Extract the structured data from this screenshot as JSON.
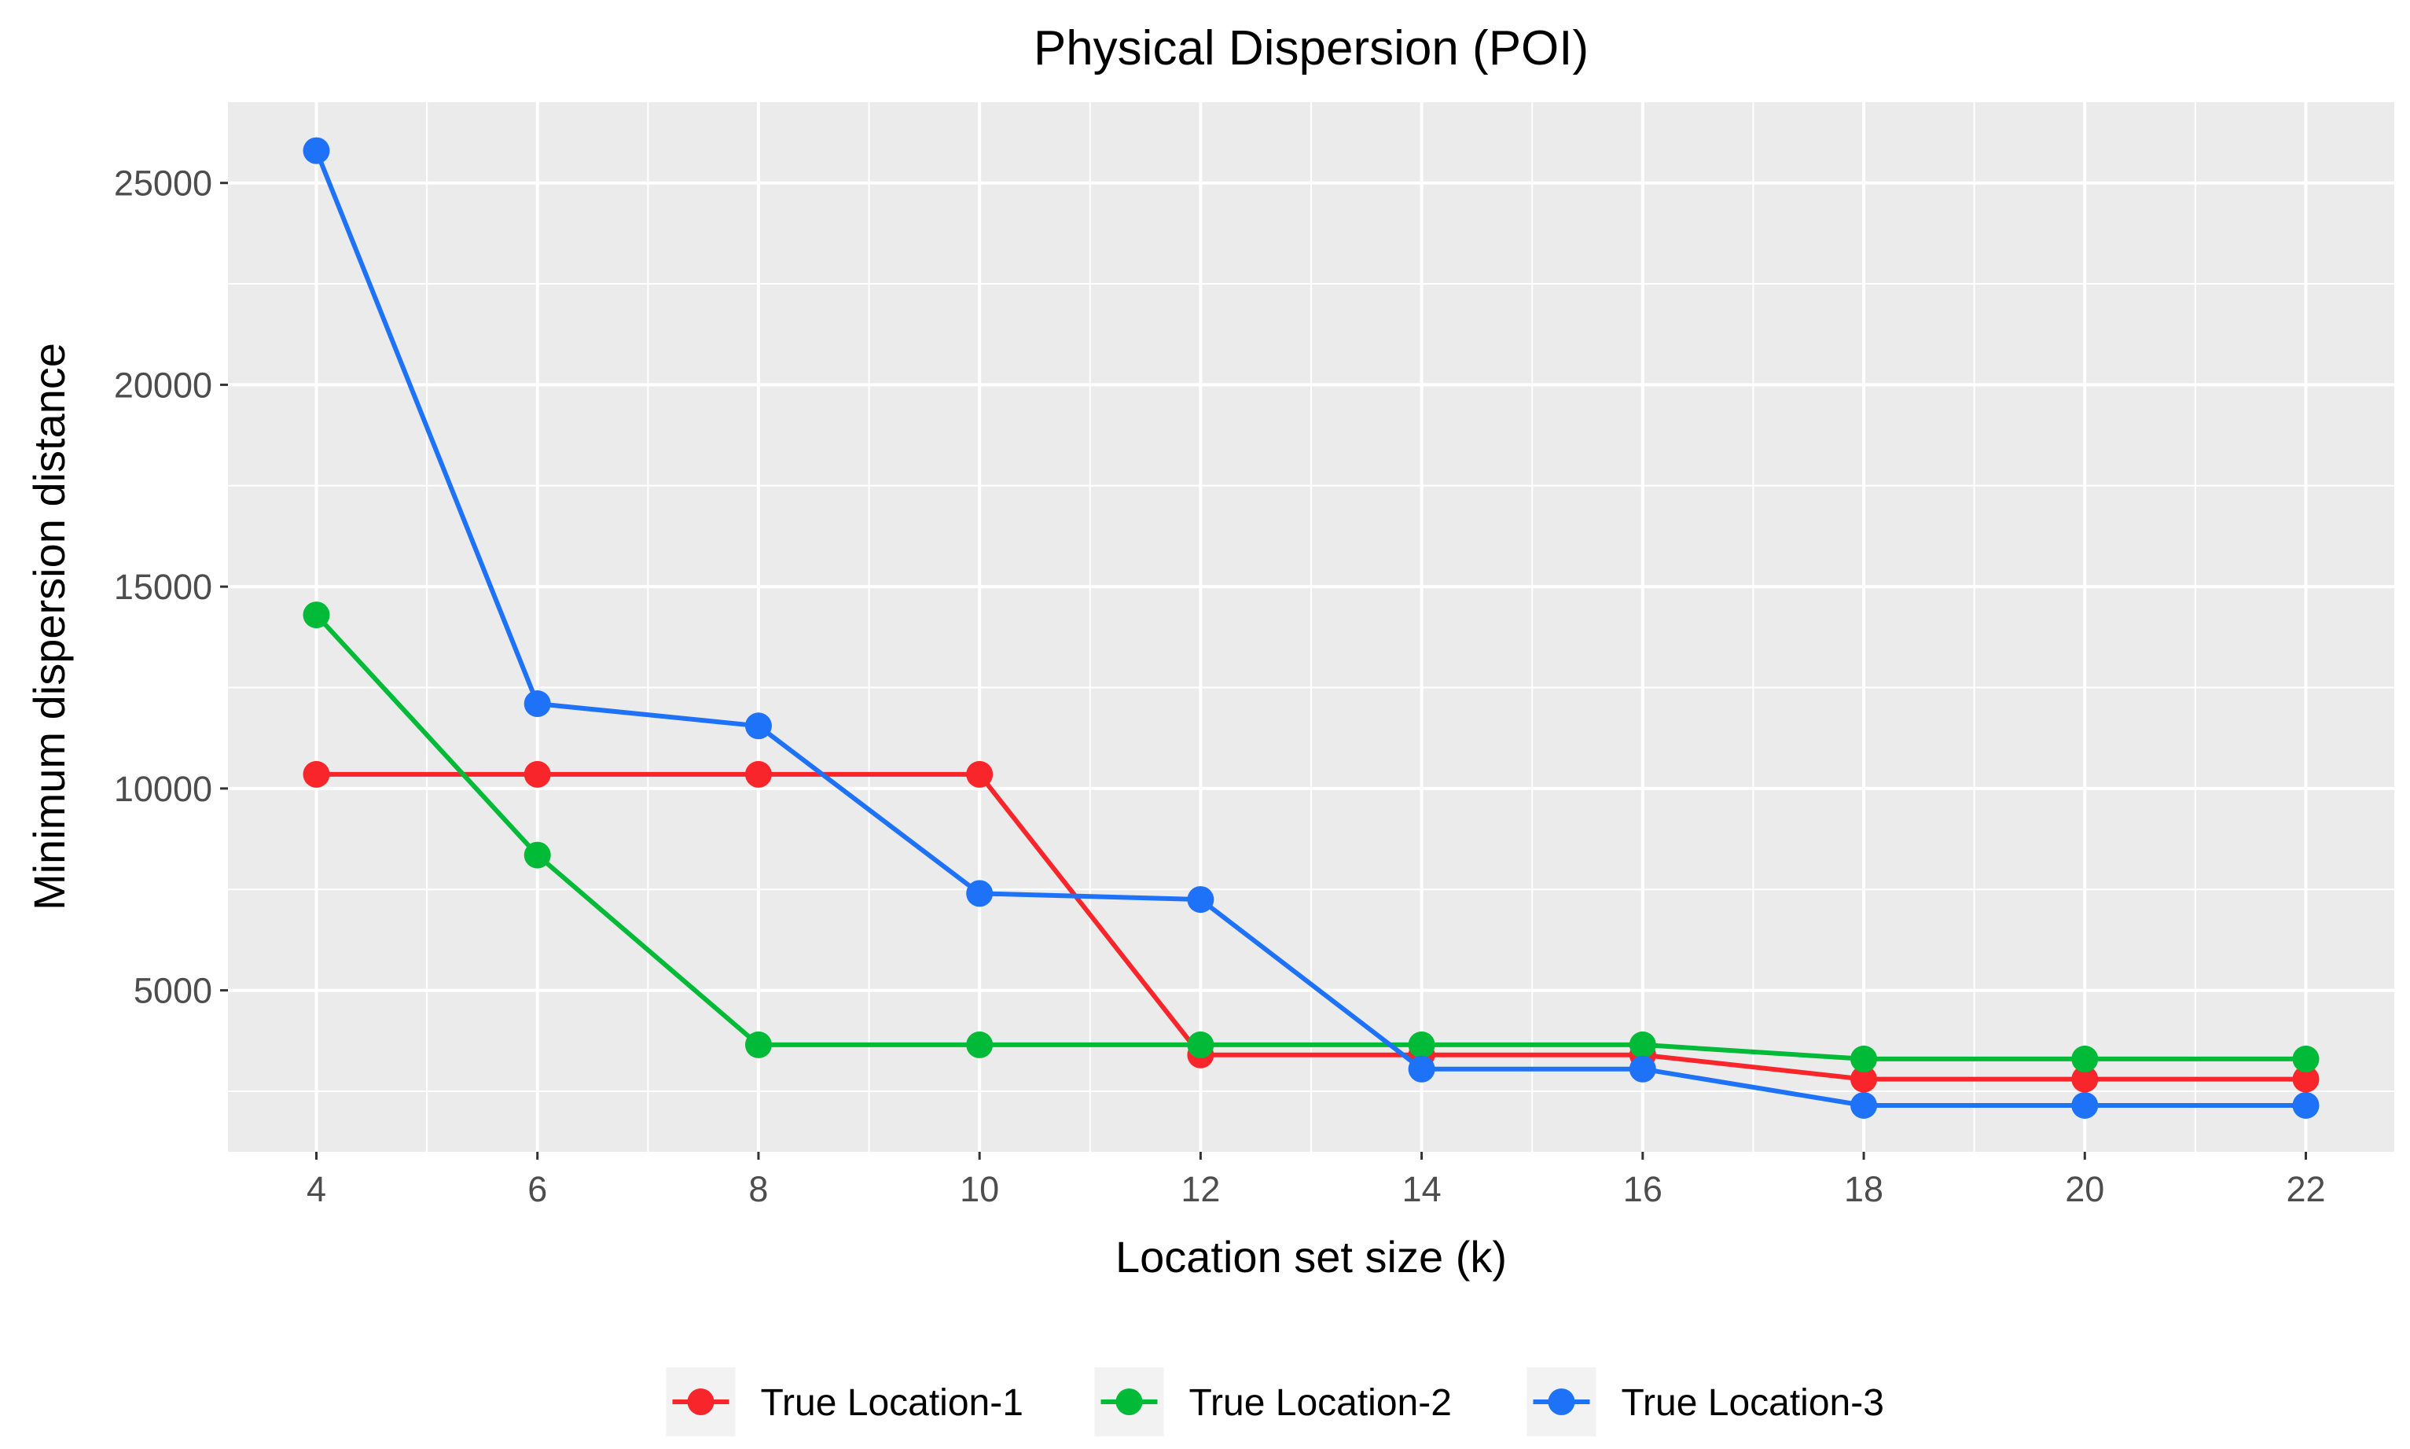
{
  "chart_data": {
    "type": "line",
    "title": "Physical Dispersion (POI)",
    "xlabel": "Location set size (k)",
    "ylabel": "Minimum dispersion distance",
    "x": [
      4,
      6,
      8,
      10,
      12,
      14,
      16,
      18,
      20,
      22
    ],
    "xlim": [
      3.2,
      22.8
    ],
    "ylim": [
      1000,
      27000
    ],
    "x_ticks": [
      4,
      6,
      8,
      10,
      12,
      14,
      16,
      18,
      20,
      22
    ],
    "x_tick_labels": [
      "4",
      "6",
      "8",
      "10",
      "12",
      "14",
      "16",
      "18",
      "20",
      "22"
    ],
    "y_ticks": [
      5000,
      10000,
      15000,
      20000,
      25000
    ],
    "y_tick_labels": [
      "5000",
      "10000",
      "15000",
      "20000",
      "25000"
    ],
    "grid": true,
    "legend_position": "bottom",
    "series": [
      {
        "name": "True Location-1",
        "color": "#f8262a",
        "values": [
          10350,
          10350,
          10350,
          10350,
          3400,
          3400,
          3400,
          2800,
          2800,
          2800
        ]
      },
      {
        "name": "True Location-2",
        "color": "#00ba38",
        "values": [
          14300,
          8350,
          3650,
          3650,
          3650,
          3650,
          3650,
          3300,
          3300,
          3300
        ]
      },
      {
        "name": "True Location-3",
        "color": "#1e72f8",
        "values": [
          25800,
          12100,
          11550,
          7400,
          7250,
          3050,
          3050,
          2150,
          2150,
          2150
        ]
      }
    ]
  }
}
